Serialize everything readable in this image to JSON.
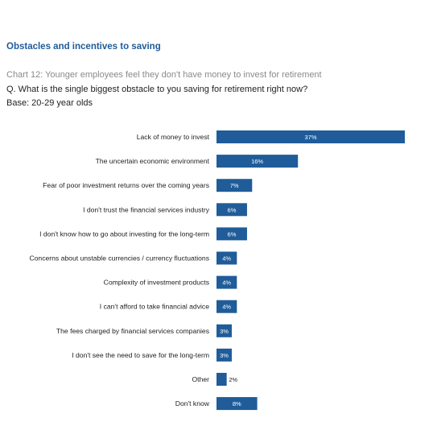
{
  "header": {
    "section_title": "Obstacles and incentives to saving",
    "chart_title": "Chart 12: Younger employees feel they don't have money to invest for retirement",
    "question": "Q. What is the single biggest obstacle to you saving for retirement right now?",
    "base": "Base: 20-29 year olds"
  },
  "colors": {
    "bar": "#1f5c99",
    "section_title": "#1f5c99",
    "chart_title": "#8a8a8a"
  },
  "chart_data": {
    "type": "bar",
    "orientation": "horizontal",
    "title": "Chart 12: Younger employees feel they don't have money to invest for retirement",
    "xlabel": "",
    "ylabel": "",
    "grid": false,
    "categories": [
      "Lack of money to invest",
      "The uncertain economic environment",
      "Fear of poor investment returns over the coming years",
      "I don't trust the financial services industry",
      "I don't know how to go about investing for the long-term",
      "Concerns about unstable currencies / currency fluctuations",
      "Complexity of investment products",
      "I can't afford to take financial advice",
      "The fees charged by financial services companies",
      "I don't see the need to save for the long-term",
      "Other",
      "Don't know"
    ],
    "values": [
      37,
      16,
      7,
      6,
      6,
      4,
      4,
      4,
      3,
      3,
      2,
      8
    ],
    "value_labels": [
      "37%",
      "16%",
      "7%",
      "6%",
      "6%",
      "4%",
      "4%",
      "4%",
      "3%",
      "3%",
      "2%",
      "8%"
    ],
    "xlim": [
      0,
      37
    ]
  }
}
